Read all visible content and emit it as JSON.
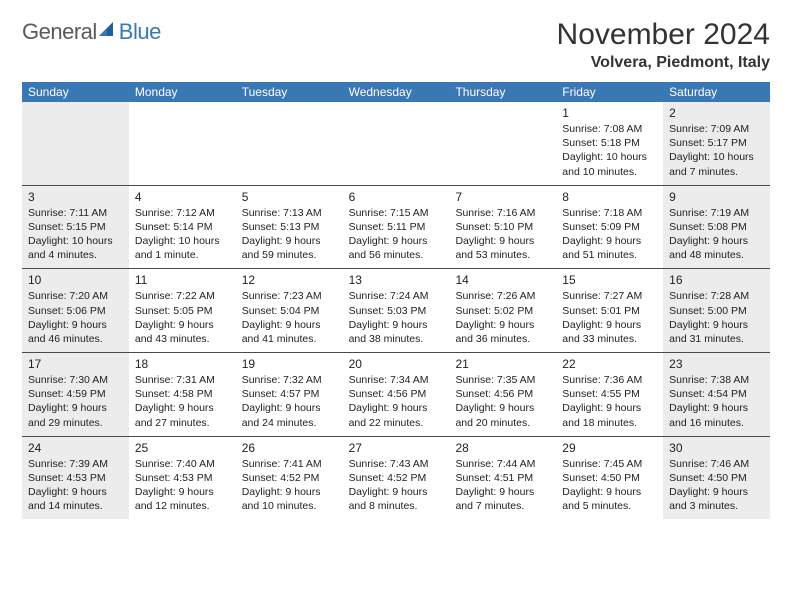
{
  "brand": {
    "part1": "General",
    "part2": "Blue"
  },
  "title": "November 2024",
  "location": "Volvera, Piedmont, Italy",
  "colors": {
    "header_bg": "#3a78b5",
    "header_text": "#ffffff",
    "shade_bg": "#ececec",
    "row_border": "#4a4a4a",
    "text": "#222222",
    "brand_gray": "#5a5a5a",
    "brand_blue": "#3a78b5"
  },
  "typography": {
    "title_fontsize": 30,
    "location_fontsize": 16,
    "dayheader_fontsize": 12,
    "daynum_fontsize": 12,
    "entry_fontsize": 10.5
  },
  "weekdays": [
    "Sunday",
    "Monday",
    "Tuesday",
    "Wednesday",
    "Thursday",
    "Friday",
    "Saturday"
  ],
  "shaded_columns": [
    0,
    6
  ],
  "weeks": [
    [
      {
        "blank": true
      },
      {
        "blank": true
      },
      {
        "blank": true
      },
      {
        "blank": true
      },
      {
        "blank": true
      },
      {
        "day": 1,
        "sunrise": "7:08 AM",
        "sunset": "5:18 PM",
        "daylight": "10 hours and 10 minutes."
      },
      {
        "day": 2,
        "sunrise": "7:09 AM",
        "sunset": "5:17 PM",
        "daylight": "10 hours and 7 minutes."
      }
    ],
    [
      {
        "day": 3,
        "sunrise": "7:11 AM",
        "sunset": "5:15 PM",
        "daylight": "10 hours and 4 minutes."
      },
      {
        "day": 4,
        "sunrise": "7:12 AM",
        "sunset": "5:14 PM",
        "daylight": "10 hours and 1 minute."
      },
      {
        "day": 5,
        "sunrise": "7:13 AM",
        "sunset": "5:13 PM",
        "daylight": "9 hours and 59 minutes."
      },
      {
        "day": 6,
        "sunrise": "7:15 AM",
        "sunset": "5:11 PM",
        "daylight": "9 hours and 56 minutes."
      },
      {
        "day": 7,
        "sunrise": "7:16 AM",
        "sunset": "5:10 PM",
        "daylight": "9 hours and 53 minutes."
      },
      {
        "day": 8,
        "sunrise": "7:18 AM",
        "sunset": "5:09 PM",
        "daylight": "9 hours and 51 minutes."
      },
      {
        "day": 9,
        "sunrise": "7:19 AM",
        "sunset": "5:08 PM",
        "daylight": "9 hours and 48 minutes."
      }
    ],
    [
      {
        "day": 10,
        "sunrise": "7:20 AM",
        "sunset": "5:06 PM",
        "daylight": "9 hours and 46 minutes."
      },
      {
        "day": 11,
        "sunrise": "7:22 AM",
        "sunset": "5:05 PM",
        "daylight": "9 hours and 43 minutes."
      },
      {
        "day": 12,
        "sunrise": "7:23 AM",
        "sunset": "5:04 PM",
        "daylight": "9 hours and 41 minutes."
      },
      {
        "day": 13,
        "sunrise": "7:24 AM",
        "sunset": "5:03 PM",
        "daylight": "9 hours and 38 minutes."
      },
      {
        "day": 14,
        "sunrise": "7:26 AM",
        "sunset": "5:02 PM",
        "daylight": "9 hours and 36 minutes."
      },
      {
        "day": 15,
        "sunrise": "7:27 AM",
        "sunset": "5:01 PM",
        "daylight": "9 hours and 33 minutes."
      },
      {
        "day": 16,
        "sunrise": "7:28 AM",
        "sunset": "5:00 PM",
        "daylight": "9 hours and 31 minutes."
      }
    ],
    [
      {
        "day": 17,
        "sunrise": "7:30 AM",
        "sunset": "4:59 PM",
        "daylight": "9 hours and 29 minutes."
      },
      {
        "day": 18,
        "sunrise": "7:31 AM",
        "sunset": "4:58 PM",
        "daylight": "9 hours and 27 minutes."
      },
      {
        "day": 19,
        "sunrise": "7:32 AM",
        "sunset": "4:57 PM",
        "daylight": "9 hours and 24 minutes."
      },
      {
        "day": 20,
        "sunrise": "7:34 AM",
        "sunset": "4:56 PM",
        "daylight": "9 hours and 22 minutes."
      },
      {
        "day": 21,
        "sunrise": "7:35 AM",
        "sunset": "4:56 PM",
        "daylight": "9 hours and 20 minutes."
      },
      {
        "day": 22,
        "sunrise": "7:36 AM",
        "sunset": "4:55 PM",
        "daylight": "9 hours and 18 minutes."
      },
      {
        "day": 23,
        "sunrise": "7:38 AM",
        "sunset": "4:54 PM",
        "daylight": "9 hours and 16 minutes."
      }
    ],
    [
      {
        "day": 24,
        "sunrise": "7:39 AM",
        "sunset": "4:53 PM",
        "daylight": "9 hours and 14 minutes."
      },
      {
        "day": 25,
        "sunrise": "7:40 AM",
        "sunset": "4:53 PM",
        "daylight": "9 hours and 12 minutes."
      },
      {
        "day": 26,
        "sunrise": "7:41 AM",
        "sunset": "4:52 PM",
        "daylight": "9 hours and 10 minutes."
      },
      {
        "day": 27,
        "sunrise": "7:43 AM",
        "sunset": "4:52 PM",
        "daylight": "9 hours and 8 minutes."
      },
      {
        "day": 28,
        "sunrise": "7:44 AM",
        "sunset": "4:51 PM",
        "daylight": "9 hours and 7 minutes."
      },
      {
        "day": 29,
        "sunrise": "7:45 AM",
        "sunset": "4:50 PM",
        "daylight": "9 hours and 5 minutes."
      },
      {
        "day": 30,
        "sunrise": "7:46 AM",
        "sunset": "4:50 PM",
        "daylight": "9 hours and 3 minutes."
      }
    ]
  ],
  "labels": {
    "sunrise": "Sunrise:",
    "sunset": "Sunset:",
    "daylight": "Daylight:"
  }
}
